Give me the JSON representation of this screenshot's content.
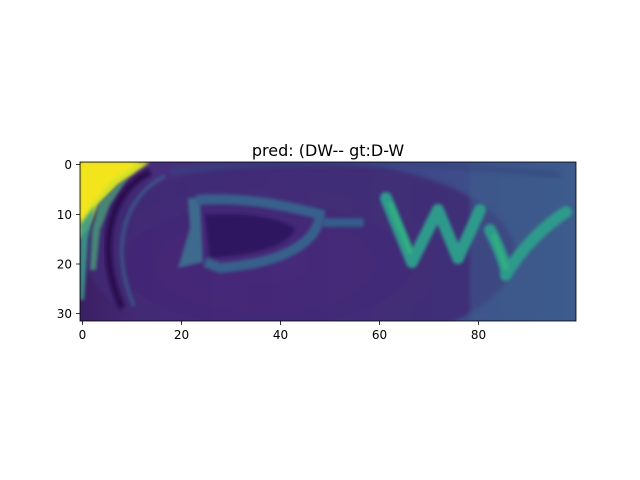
{
  "title": "pred: (DW-- gt:D-W",
  "image": {
    "description_colormap": "viridis",
    "rows": 32,
    "cols": 100,
    "content_text": "D-W"
  },
  "axes": {
    "x_ticks": [
      "0",
      "20",
      "40",
      "60",
      "80"
    ],
    "y_ticks": [
      "0",
      "10",
      "20",
      "30"
    ]
  },
  "colors": {
    "viridis_dark": "#440154",
    "viridis_purple": "#472d7b",
    "viridis_blue": "#3b528b",
    "viridis_teal": "#21918c",
    "viridis_green": "#5ec962",
    "viridis_yellow": "#fde725"
  }
}
